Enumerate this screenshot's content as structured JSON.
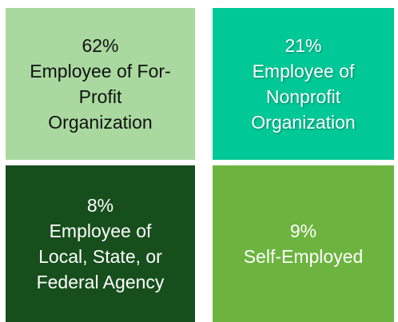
{
  "chart_data": {
    "type": "tile",
    "categories": [
      "Employee of For-Profit Organization",
      "Employee of Nonprofit Organization",
      "Employee of Local, State, or Federal Agency",
      "Self-Employed"
    ],
    "values": [
      62,
      21,
      8,
      9
    ],
    "value_labels": [
      "62%",
      "21%",
      "8%",
      "9%"
    ],
    "colors": [
      "#a9d99f",
      "#00c896",
      "#174f1c",
      "#6cb43f"
    ],
    "text_colors": [
      "#111111",
      "#ffffff",
      "#ffffff",
      "#ffffff"
    ]
  }
}
